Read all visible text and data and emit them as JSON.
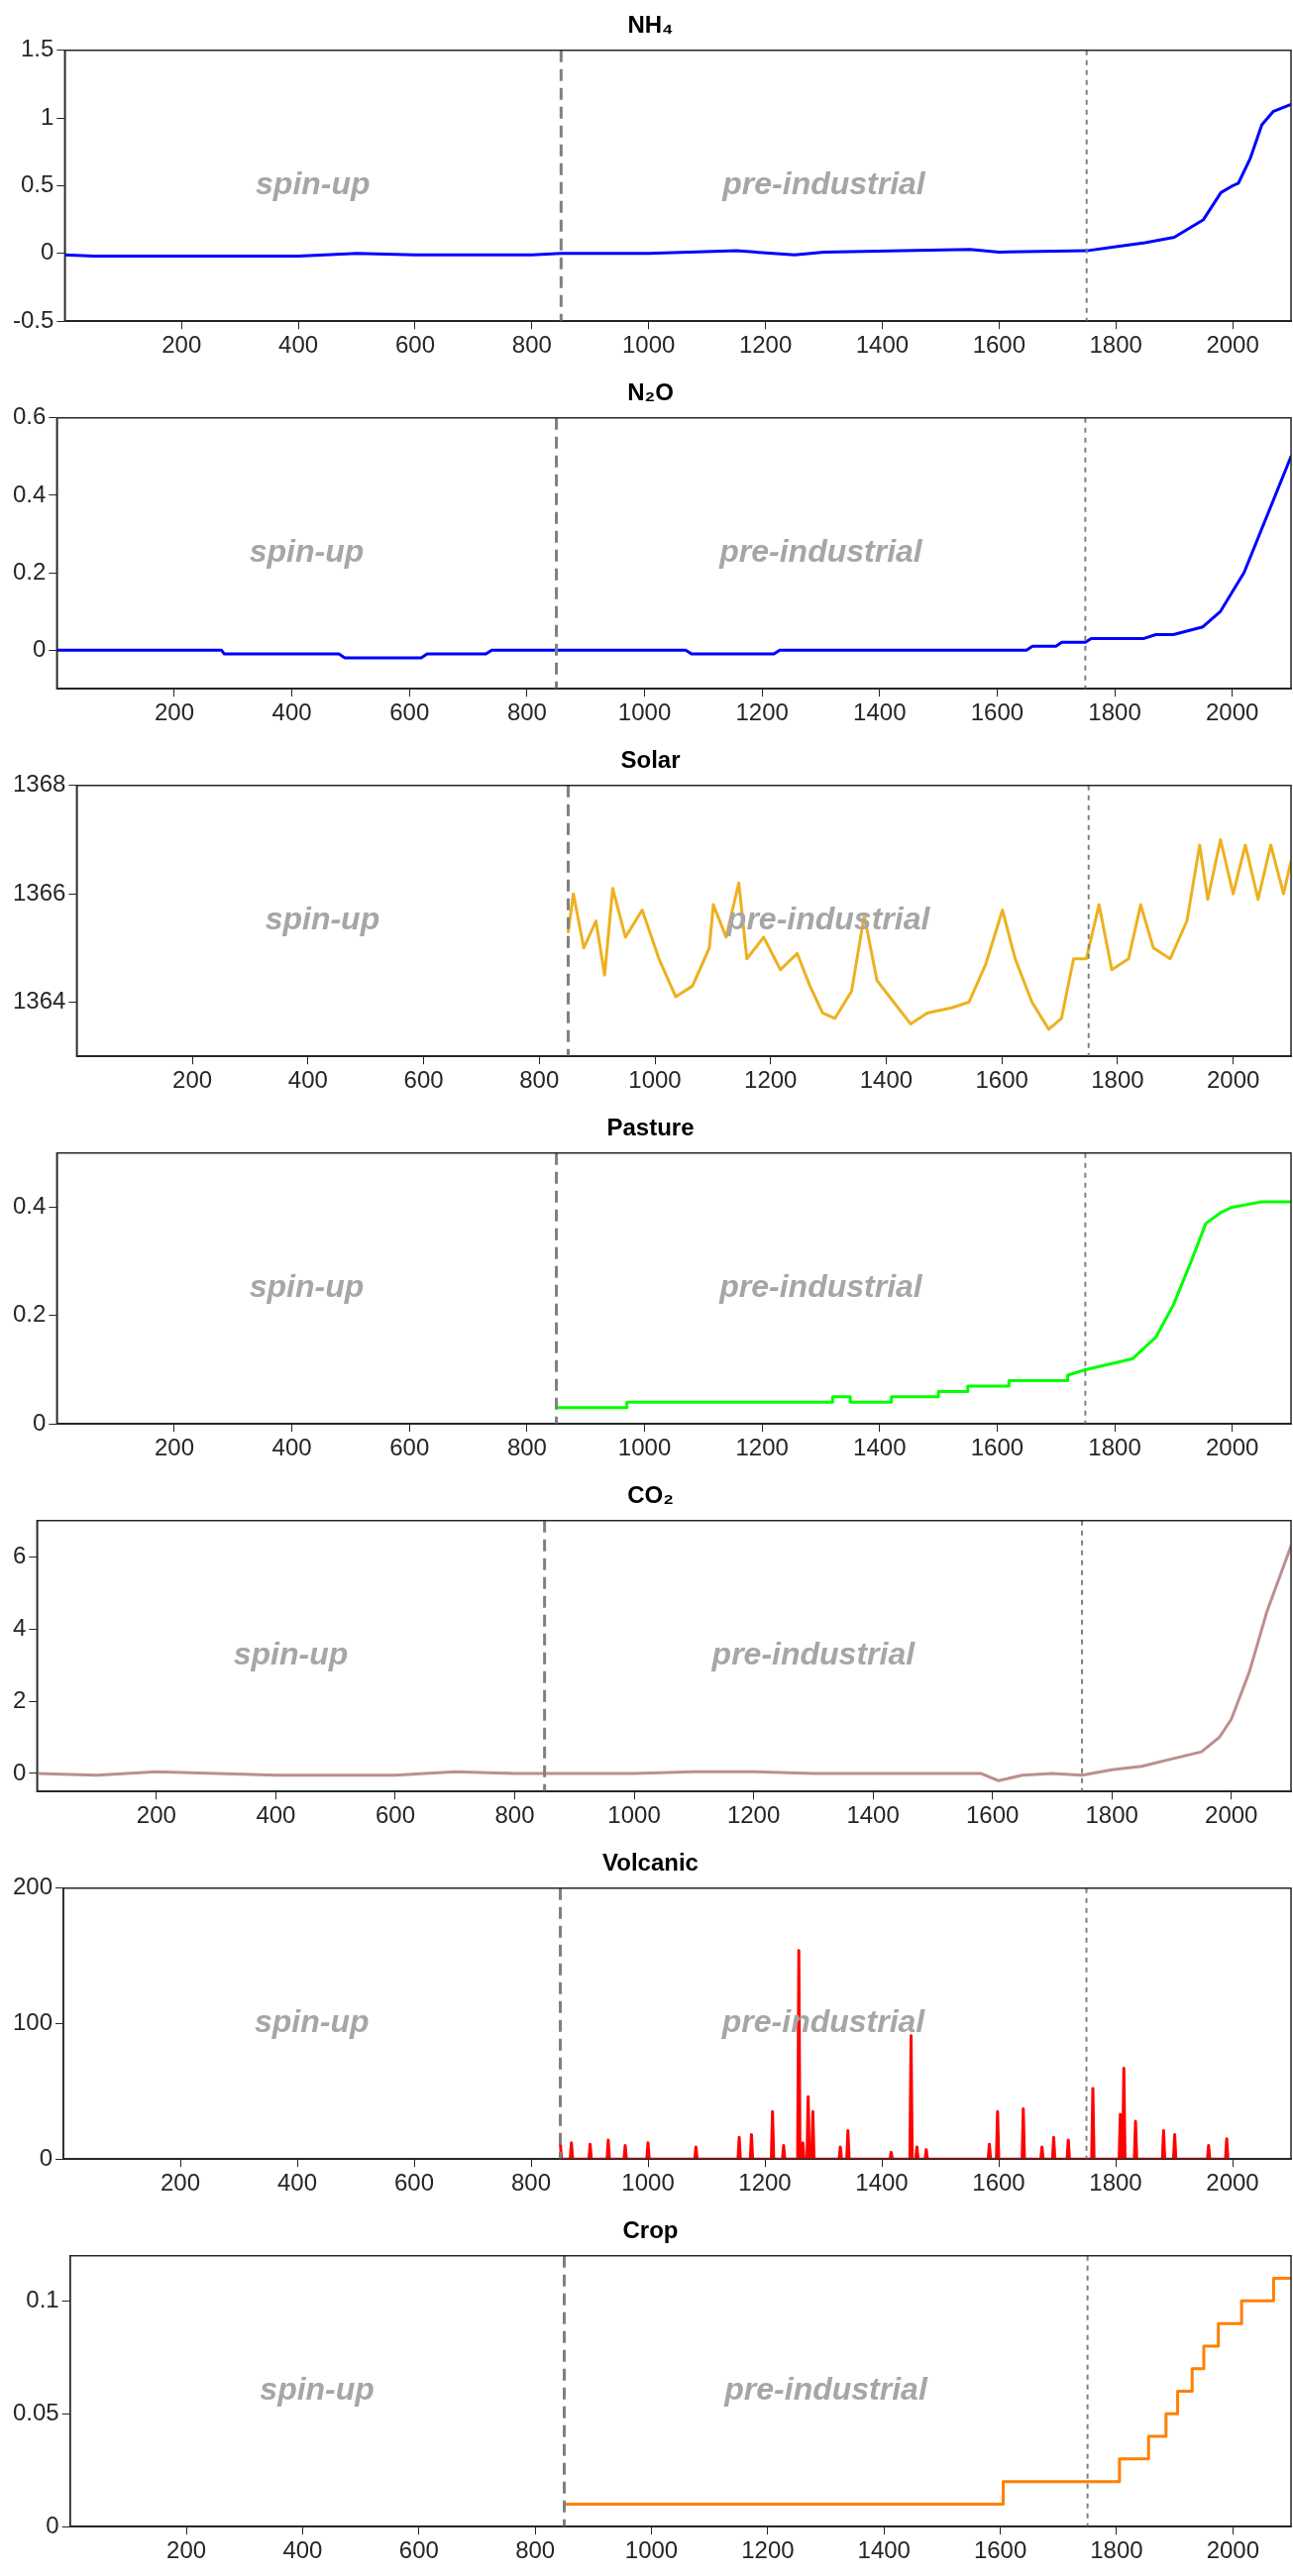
{
  "chart_data": [
    {
      "type": "line",
      "title": "NH₄",
      "xlim": [
        0,
        2100
      ],
      "xticks": [
        200,
        400,
        600,
        800,
        1000,
        1200,
        1400,
        1600,
        1800,
        2000
      ],
      "ylim": [
        -0.5,
        1.5
      ],
      "yticks": [
        -0.5,
        0,
        0.5,
        1,
        1.5
      ],
      "grid": false,
      "legend": false,
      "ref_lines": [
        {
          "axis": "x",
          "value": 850,
          "color": "#808080",
          "line_style": "dashed"
        },
        {
          "axis": "x",
          "value": 1750,
          "color": "#808080",
          "line_style": "dotted"
        }
      ],
      "annotations": [
        "spin-up",
        "pre-industrial"
      ],
      "series": [
        {
          "color": "#0000ff",
          "x": [
            0,
            50,
            200,
            400,
            500,
            600,
            800,
            850,
            1000,
            1150,
            1250,
            1300,
            1550,
            1600,
            1750,
            1800,
            1850,
            1900,
            1950,
            1980,
            2000,
            2010,
            2030,
            2050,
            2070,
            2100
          ],
          "values": [
            -0.01,
            -0.02,
            -0.02,
            -0.02,
            0,
            -0.01,
            -0.01,
            0,
            0,
            0.02,
            -0.01,
            0.01,
            0.03,
            0.01,
            0.02,
            0.05,
            0.08,
            0.12,
            0.25,
            0.45,
            0.5,
            0.52,
            0.7,
            0.95,
            1.05,
            1.1
          ]
        }
      ]
    },
    {
      "type": "line",
      "title": "N₂O",
      "xlim": [
        0,
        2100
      ],
      "xticks": [
        200,
        400,
        600,
        800,
        1000,
        1200,
        1400,
        1600,
        1800,
        2000
      ],
      "ylim": [
        -0.1,
        0.6
      ],
      "yticks": [
        0,
        0.2,
        0.4,
        0.6
      ],
      "grid": false,
      "legend": false,
      "ref_lines": [
        {
          "axis": "x",
          "value": 850,
          "color": "#808080",
          "line_style": "dashed"
        },
        {
          "axis": "x",
          "value": 1750,
          "color": "#808080",
          "line_style": "dotted"
        }
      ],
      "annotations": [
        "spin-up",
        "pre-industrial"
      ],
      "series": [
        {
          "color": "#0000ff",
          "x": [
            0,
            280,
            285,
            480,
            490,
            620,
            630,
            730,
            740,
            1070,
            1080,
            1220,
            1230,
            1650,
            1660,
            1700,
            1710,
            1750,
            1760,
            1850,
            1870,
            1900,
            1950,
            1980,
            2000,
            2020,
            2060,
            2100
          ],
          "values": [
            0,
            0,
            -0.01,
            -0.01,
            -0.02,
            -0.02,
            -0.01,
            -0.01,
            0,
            0,
            -0.01,
            -0.01,
            0,
            0,
            0.01,
            0.01,
            0.02,
            0.02,
            0.03,
            0.03,
            0.04,
            0.04,
            0.06,
            0.1,
            0.15,
            0.2,
            0.35,
            0.5
          ]
        }
      ]
    },
    {
      "type": "line",
      "title": "Solar",
      "xlim": [
        0,
        2100
      ],
      "xticks": [
        200,
        400,
        600,
        800,
        1000,
        1200,
        1400,
        1600,
        1800,
        2000
      ],
      "ylim": [
        1363,
        1368
      ],
      "yticks": [
        1364,
        1366,
        1368
      ],
      "grid": false,
      "legend": false,
      "ref_lines": [
        {
          "axis": "x",
          "value": 850,
          "color": "#808080",
          "line_style": "dashed"
        },
        {
          "axis": "x",
          "value": 1750,
          "color": "#808080",
          "line_style": "dotted"
        }
      ],
      "annotations": [
        "spin-up",
        "pre-industrial"
      ],
      "series": [
        {
          "color": "#edb120",
          "x": [
            850,
            859,
            877,
            898,
            913,
            927,
            949,
            978,
            1007,
            1036,
            1065,
            1094,
            1101,
            1123,
            1145,
            1159,
            1188,
            1217,
            1246,
            1268,
            1290,
            1311,
            1340,
            1362,
            1384,
            1413,
            1442,
            1471,
            1514,
            1543,
            1572,
            1601,
            1623,
            1652,
            1681,
            1703,
            1724,
            1746,
            1768,
            1790,
            1819,
            1840,
            1862,
            1891,
            1920,
            1942,
            1956,
            1978,
            2000,
            2021,
            2043,
            2065,
            2087,
            2100
          ],
          "values": [
            1365.3,
            1366.0,
            1365.0,
            1365.5,
            1364.5,
            1366.1,
            1365.2,
            1365.7,
            1364.8,
            1364.1,
            1364.3,
            1365.0,
            1365.8,
            1365.2,
            1366.2,
            1364.8,
            1365.2,
            1364.6,
            1364.9,
            1364.3,
            1363.8,
            1363.7,
            1364.2,
            1365.6,
            1364.4,
            1364.0,
            1363.6,
            1363.8,
            1363.9,
            1364.0,
            1364.7,
            1365.7,
            1364.8,
            1364.0,
            1363.5,
            1363.7,
            1364.8,
            1364.8,
            1365.8,
            1364.6,
            1364.8,
            1365.8,
            1365.0,
            1364.8,
            1365.5,
            1366.9,
            1365.9,
            1367.0,
            1366.0,
            1366.9,
            1365.9,
            1366.9,
            1366.0,
            1366.6
          ]
        }
      ]
    },
    {
      "type": "line",
      "title": "Pasture",
      "xlim": [
        0,
        2100
      ],
      "xticks": [
        200,
        400,
        600,
        800,
        1000,
        1200,
        1400,
        1600,
        1800,
        2000
      ],
      "ylim": [
        0,
        0.5
      ],
      "yticks": [
        0,
        0.2,
        0.4
      ],
      "grid": false,
      "legend": false,
      "ref_lines": [
        {
          "axis": "x",
          "value": 850,
          "color": "#808080",
          "line_style": "dashed"
        },
        {
          "axis": "x",
          "value": 1750,
          "color": "#808080",
          "line_style": "dotted"
        }
      ],
      "annotations": [
        "spin-up",
        "pre-industrial"
      ],
      "series": [
        {
          "color": "#00ff00",
          "x": [
            850,
            970,
            970,
            1320,
            1320,
            1350,
            1350,
            1420,
            1420,
            1500,
            1500,
            1550,
            1550,
            1620,
            1620,
            1720,
            1720,
            1750,
            1790,
            1830,
            1870,
            1900,
            1930,
            1955,
            1980,
            2000,
            2050,
            2100
          ],
          "values": [
            0.03,
            0.03,
            0.04,
            0.04,
            0.05,
            0.05,
            0.04,
            0.04,
            0.05,
            0.05,
            0.06,
            0.06,
            0.07,
            0.07,
            0.08,
            0.08,
            0.09,
            0.1,
            0.11,
            0.12,
            0.16,
            0.22,
            0.3,
            0.37,
            0.39,
            0.4,
            0.41,
            0.41
          ]
        }
      ]
    },
    {
      "type": "line",
      "title": "CO₂",
      "xlim": [
        0,
        2100
      ],
      "xticks": [
        200,
        400,
        600,
        800,
        1000,
        1200,
        1400,
        1600,
        1800,
        2000
      ],
      "ylim": [
        -0.5,
        7
      ],
      "yticks": [
        0,
        2,
        4,
        6
      ],
      "grid": false,
      "legend": false,
      "ref_lines": [
        {
          "axis": "x",
          "value": 850,
          "color": "#808080",
          "line_style": "dashed"
        },
        {
          "axis": "x",
          "value": 1750,
          "color": "#808080",
          "line_style": "dotted"
        }
      ],
      "annotations": [
        "spin-up",
        "pre-industrial"
      ],
      "series": [
        {
          "color": "#bc8f8f",
          "x": [
            0,
            100,
            200,
            300,
            400,
            500,
            600,
            700,
            800,
            900,
            1000,
            1100,
            1200,
            1300,
            1400,
            1500,
            1580,
            1610,
            1650,
            1700,
            1750,
            1800,
            1850,
            1900,
            1950,
            1980,
            2000,
            2030,
            2060,
            2100
          ],
          "values": [
            0,
            -0.05,
            0.05,
            0,
            -0.05,
            -0.05,
            -0.05,
            0.05,
            0,
            0,
            0,
            0.05,
            0.05,
            0,
            0,
            0,
            0,
            -0.2,
            -0.05,
            0,
            -0.05,
            0.1,
            0.2,
            0.4,
            0.6,
            1.0,
            1.5,
            2.8,
            4.5,
            6.3
          ]
        }
      ]
    },
    {
      "type": "line",
      "title": "Volcanic",
      "xlim": [
        0,
        2100
      ],
      "xticks": [
        200,
        400,
        600,
        800,
        1000,
        1200,
        1400,
        1600,
        1800,
        2000
      ],
      "ylim": [
        0,
        200
      ],
      "yticks": [
        0,
        100,
        200
      ],
      "grid": false,
      "legend": false,
      "ref_lines": [
        {
          "axis": "x",
          "value": 850,
          "color": "#808080",
          "line_style": "dashed"
        },
        {
          "axis": "x",
          "value": 1750,
          "color": "#808080",
          "line_style": "dotted"
        }
      ],
      "annotations": [
        "spin-up",
        "pre-industrial"
      ],
      "series": [
        {
          "color": "#ff0000",
          "x": [
            850,
            852,
            867,
            869,
            871,
            899,
            901,
            903,
            930,
            932,
            934,
            959,
            961,
            963,
            998,
            1000,
            1002,
            1080,
            1082,
            1084,
            1154,
            1156,
            1158,
            1175,
            1177,
            1179,
            1211,
            1213,
            1215,
            1230,
            1232,
            1234,
            1256,
            1258,
            1260,
            1263,
            1265,
            1267,
            1272,
            1274,
            1276,
            1280,
            1282,
            1284,
            1327,
            1329,
            1331,
            1340,
            1342,
            1344,
            1414,
            1416,
            1418,
            1448,
            1450,
            1452,
            1458,
            1460,
            1462,
            1474,
            1476,
            1478,
            1582,
            1584,
            1586,
            1596,
            1598,
            1600,
            1640,
            1642,
            1644,
            1672,
            1674,
            1676,
            1692,
            1694,
            1696,
            1717,
            1719,
            1721,
            1759,
            1761,
            1763,
            1806,
            1808,
            1810,
            1812,
            1814,
            1816,
            1832,
            1834,
            1836,
            1880,
            1882,
            1884,
            1899,
            1901,
            1903,
            1957,
            1959,
            1961,
            1988,
            1990,
            1992
          ],
          "values": [
            12,
            0,
            0,
            12,
            0,
            0,
            11,
            0,
            0,
            14,
            0,
            0,
            10,
            0,
            0,
            12,
            0,
            0,
            9,
            0,
            0,
            16,
            0,
            0,
            18,
            0,
            0,
            35,
            0,
            0,
            10,
            0,
            0,
            154,
            0,
            0,
            12,
            0,
            0,
            46,
            0,
            0,
            35,
            0,
            0,
            9,
            0,
            0,
            21,
            0,
            0,
            5,
            0,
            0,
            91,
            0,
            0,
            9,
            0,
            0,
            7,
            0,
            0,
            11,
            0,
            0,
            35,
            0,
            0,
            37,
            0,
            0,
            9,
            0,
            0,
            16,
            0,
            0,
            14,
            0,
            0,
            52,
            0,
            0,
            33,
            0,
            0,
            67,
            0,
            0,
            28,
            0,
            0,
            21,
            0,
            0,
            18,
            0,
            0,
            10,
            0,
            0,
            15,
            0
          ]
        }
      ]
    },
    {
      "type": "step",
      "title": "Crop",
      "xlim": [
        0,
        2100
      ],
      "xticks": [
        200,
        400,
        600,
        800,
        1000,
        1200,
        1400,
        1600,
        1800,
        2000
      ],
      "ylim": [
        0,
        0.12
      ],
      "yticks": [
        0,
        0.05,
        0.1
      ],
      "grid": false,
      "legend": false,
      "ref_lines": [
        {
          "axis": "x",
          "value": 850,
          "color": "#808080",
          "line_style": "dashed"
        },
        {
          "axis": "x",
          "value": 1750,
          "color": "#808080",
          "line_style": "dotted"
        }
      ],
      "annotations": [
        "spin-up",
        "pre-industrial"
      ],
      "series": [
        {
          "color": "#ff8000",
          "x": [
            850,
            1605,
            1805,
            1855,
            1885,
            1905,
            1930,
            1950,
            1975,
            2015,
            2070,
            2100
          ],
          "values": [
            0.01,
            0.02,
            0.03,
            0.04,
            0.05,
            0.06,
            0.07,
            0.08,
            0.09,
            0.1,
            0.11,
            0.11
          ]
        }
      ]
    }
  ]
}
